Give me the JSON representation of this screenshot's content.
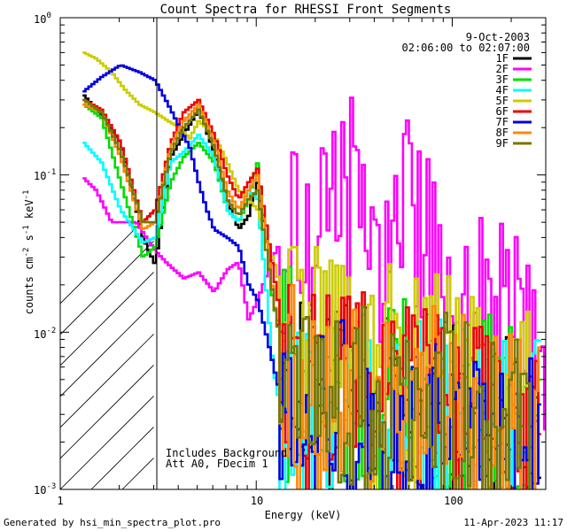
{
  "chart_data": {
    "type": "line",
    "title": "Count Spectra for RHESSI Front Segments",
    "xlabel": "Energy (keV)",
    "ylabel": "counts cm-2 s-1 keV-1",
    "ylabel_parts": {
      "base": "counts cm",
      "e1": "-2",
      "s": " s",
      "e2": "-1",
      "k": " keV",
      "e3": "-1"
    },
    "x_scale": "log",
    "y_scale": "log",
    "xlim": [
      1,
      300
    ],
    "ylim": [
      0.001,
      1.0
    ],
    "x_ticks": [
      {
        "value": 1,
        "label": "1"
      },
      {
        "value": 10,
        "label": "10"
      },
      {
        "value": 100,
        "label": "100"
      }
    ],
    "y_ticks": [
      {
        "value": 1.0,
        "base": "10",
        "exp": "0"
      },
      {
        "value": 0.1,
        "base": "10",
        "exp": "-1"
      },
      {
        "value": 0.01,
        "base": "10",
        "exp": "-2"
      },
      {
        "value": 0.001,
        "base": "10",
        "exp": "-3"
      }
    ],
    "date": "9-Oct-2003",
    "time_range": "02:06:00 to 02:07:00",
    "hatched_region_max_keV": 3,
    "annotations": [
      "Includes Background",
      "Att A0, FDecim 1"
    ],
    "series": [
      {
        "name": "1F",
        "color": "#000000",
        "points": [
          [
            1.3,
            0.32
          ],
          [
            1.6,
            0.24
          ],
          [
            2.0,
            0.16
          ],
          [
            2.6,
            0.04
          ],
          [
            3.0,
            0.027
          ],
          [
            3.6,
            0.13
          ],
          [
            4.2,
            0.18
          ],
          [
            5.0,
            0.26
          ],
          [
            6.0,
            0.14
          ],
          [
            7.0,
            0.07
          ],
          [
            8.0,
            0.045
          ],
          [
            9.0,
            0.055
          ],
          [
            10.0,
            0.09
          ],
          [
            11.0,
            0.04
          ],
          [
            12.5,
            0.012
          ],
          [
            14,
            0.007
          ],
          [
            17,
            0.004
          ],
          [
            20,
            0.005
          ],
          [
            25,
            0.004
          ],
          [
            35,
            0.004
          ],
          [
            50,
            0.0038
          ],
          [
            80,
            0.0035
          ],
          [
            120,
            0.003
          ],
          [
            200,
            0.0026
          ],
          [
            280,
            0.0022
          ]
        ]
      },
      {
        "name": "2F",
        "color": "#ff00ff",
        "points": [
          [
            1.3,
            0.095
          ],
          [
            1.5,
            0.08
          ],
          [
            1.8,
            0.05
          ],
          [
            2.4,
            0.05
          ],
          [
            3.0,
            0.033
          ],
          [
            3.5,
            0.027
          ],
          [
            4.2,
            0.022
          ],
          [
            5.0,
            0.024
          ],
          [
            6.0,
            0.018
          ],
          [
            7.0,
            0.025
          ],
          [
            8.0,
            0.028
          ],
          [
            9.0,
            0.012
          ],
          [
            10.0,
            0.016
          ],
          [
            12.0,
            0.03
          ],
          [
            14.0,
            0.045
          ],
          [
            17.0,
            0.04
          ],
          [
            20.0,
            0.06
          ],
          [
            24.0,
            0.09
          ],
          [
            28.0,
            0.095
          ],
          [
            32.0,
            0.08
          ],
          [
            37.0,
            0.06
          ],
          [
            42.0,
            0.055
          ],
          [
            47.0,
            0.045
          ],
          [
            52.0,
            0.06
          ],
          [
            57.0,
            0.12
          ],
          [
            62.0,
            0.05
          ],
          [
            70.0,
            0.035
          ],
          [
            85.0,
            0.03
          ],
          [
            110.0,
            0.022
          ],
          [
            140.0,
            0.016
          ],
          [
            180.0,
            0.013
          ],
          [
            220.0,
            0.01
          ],
          [
            260.0,
            0.008
          ],
          [
            300.0,
            0.0065
          ]
        ]
      },
      {
        "name": "3F",
        "color": "#00dd00",
        "points": [
          [
            1.3,
            0.28
          ],
          [
            1.6,
            0.23
          ],
          [
            2.0,
            0.09
          ],
          [
            2.6,
            0.03
          ],
          [
            3.0,
            0.035
          ],
          [
            3.6,
            0.09
          ],
          [
            4.2,
            0.13
          ],
          [
            5.0,
            0.16
          ],
          [
            6.0,
            0.12
          ],
          [
            7.0,
            0.06
          ],
          [
            8.0,
            0.05
          ],
          [
            9.0,
            0.07
          ],
          [
            10.0,
            0.12
          ],
          [
            11.0,
            0.04
          ],
          [
            12.0,
            0.015
          ],
          [
            14,
            0.008
          ],
          [
            17,
            0.004
          ],
          [
            20,
            0.004
          ],
          [
            30,
            0.004
          ],
          [
            45,
            0.006
          ],
          [
            60,
            0.004
          ],
          [
            90,
            0.004
          ],
          [
            130,
            0.0035
          ],
          [
            200,
            0.003
          ],
          [
            280,
            0.0025
          ]
        ]
      },
      {
        "name": "4F",
        "color": "#00ffff",
        "points": [
          [
            1.3,
            0.16
          ],
          [
            1.6,
            0.12
          ],
          [
            2.0,
            0.06
          ],
          [
            2.6,
            0.037
          ],
          [
            3.0,
            0.04
          ],
          [
            3.6,
            0.12
          ],
          [
            4.2,
            0.14
          ],
          [
            5.0,
            0.18
          ],
          [
            6.0,
            0.13
          ],
          [
            7.0,
            0.06
          ],
          [
            8.0,
            0.05
          ],
          [
            9.0,
            0.08
          ],
          [
            10.0,
            0.07
          ],
          [
            11.0,
            0.02
          ],
          [
            12.0,
            0.006
          ],
          [
            14,
            0.002
          ],
          [
            17,
            0.003
          ],
          [
            22,
            0.003
          ],
          [
            30,
            0.003
          ],
          [
            45,
            0.0032
          ],
          [
            60,
            0.003
          ],
          [
            90,
            0.0032
          ],
          [
            130,
            0.003
          ],
          [
            200,
            0.0027
          ],
          [
            280,
            0.0023
          ]
        ]
      },
      {
        "name": "5F",
        "color": "#cccc00",
        "points": [
          [
            1.3,
            0.6
          ],
          [
            1.5,
            0.55
          ],
          [
            1.8,
            0.45
          ],
          [
            2.1,
            0.35
          ],
          [
            2.5,
            0.28
          ],
          [
            3.0,
            0.25
          ],
          [
            3.5,
            0.22
          ],
          [
            4.0,
            0.2
          ],
          [
            4.5,
            0.17
          ],
          [
            5.0,
            0.22
          ],
          [
            6.0,
            0.18
          ],
          [
            7.0,
            0.12
          ],
          [
            8.0,
            0.08
          ],
          [
            9.0,
            0.07
          ],
          [
            10.0,
            0.06
          ],
          [
            11.0,
            0.04
          ],
          [
            12.5,
            0.025
          ],
          [
            14,
            0.012
          ],
          [
            17,
            0.008
          ],
          [
            20,
            0.009
          ],
          [
            25,
            0.0085
          ],
          [
            30,
            0.008
          ],
          [
            40,
            0.008
          ],
          [
            60,
            0.007
          ],
          [
            100,
            0.006
          ],
          [
            150,
            0.005
          ],
          [
            250,
            0.0035
          ]
        ]
      },
      {
        "name": "6F",
        "color": "#ee0000",
        "points": [
          [
            1.3,
            0.3
          ],
          [
            1.6,
            0.26
          ],
          [
            2.0,
            0.16
          ],
          [
            2.6,
            0.05
          ],
          [
            3.0,
            0.06
          ],
          [
            3.6,
            0.16
          ],
          [
            4.2,
            0.25
          ],
          [
            5.0,
            0.3
          ],
          [
            6.0,
            0.18
          ],
          [
            7.0,
            0.1
          ],
          [
            8.0,
            0.07
          ],
          [
            9.0,
            0.09
          ],
          [
            10.0,
            0.11
          ],
          [
            11.0,
            0.05
          ],
          [
            12.5,
            0.018
          ],
          [
            14,
            0.008
          ],
          [
            17,
            0.005
          ],
          [
            22,
            0.005
          ],
          [
            30,
            0.0045
          ],
          [
            45,
            0.0045
          ],
          [
            60,
            0.004
          ],
          [
            90,
            0.004
          ],
          [
            130,
            0.0035
          ],
          [
            200,
            0.003
          ],
          [
            280,
            0.0025
          ]
        ]
      },
      {
        "name": "7F",
        "color": "#0000dd",
        "points": [
          [
            1.3,
            0.34
          ],
          [
            1.6,
            0.42
          ],
          [
            2.0,
            0.5
          ],
          [
            2.5,
            0.45
          ],
          [
            3.0,
            0.4
          ],
          [
            3.5,
            0.28
          ],
          [
            4.0,
            0.2
          ],
          [
            4.5,
            0.15
          ],
          [
            5.0,
            0.09
          ],
          [
            5.5,
            0.06
          ],
          [
            6.0,
            0.045
          ],
          [
            7.0,
            0.04
          ],
          [
            8.0,
            0.035
          ],
          [
            9.0,
            0.02
          ],
          [
            10.0,
            0.016
          ],
          [
            11.0,
            0.01
          ],
          [
            12.5,
            0.005
          ],
          [
            14,
            0.003
          ],
          [
            17,
            0.002
          ],
          [
            22,
            0.003
          ],
          [
            30,
            0.003
          ],
          [
            45,
            0.003
          ],
          [
            60,
            0.003
          ],
          [
            90,
            0.003
          ],
          [
            130,
            0.003
          ],
          [
            200,
            0.0025
          ],
          [
            280,
            0.002
          ]
        ]
      },
      {
        "name": "8F",
        "color": "#ff8800",
        "points": [
          [
            1.3,
            0.28
          ],
          [
            1.6,
            0.25
          ],
          [
            2.0,
            0.13
          ],
          [
            2.6,
            0.045
          ],
          [
            3.0,
            0.05
          ],
          [
            3.6,
            0.15
          ],
          [
            4.2,
            0.22
          ],
          [
            5.0,
            0.28
          ],
          [
            6.0,
            0.16
          ],
          [
            7.0,
            0.08
          ],
          [
            8.0,
            0.06
          ],
          [
            9.0,
            0.08
          ],
          [
            10.0,
            0.1
          ],
          [
            11.0,
            0.04
          ],
          [
            12.5,
            0.012
          ],
          [
            14,
            0.006
          ],
          [
            17,
            0.005
          ],
          [
            22,
            0.005
          ],
          [
            30,
            0.0045
          ],
          [
            45,
            0.004
          ],
          [
            60,
            0.004
          ],
          [
            90,
            0.0038
          ],
          [
            130,
            0.0033
          ],
          [
            200,
            0.0028
          ],
          [
            280,
            0.0024
          ]
        ]
      },
      {
        "name": "9F",
        "color": "#777700",
        "points": [
          [
            1.3,
            0.3
          ],
          [
            1.6,
            0.25
          ],
          [
            2.0,
            0.14
          ],
          [
            2.6,
            0.05
          ],
          [
            3.0,
            0.05
          ],
          [
            3.6,
            0.14
          ],
          [
            4.2,
            0.2
          ],
          [
            5.0,
            0.26
          ],
          [
            6.0,
            0.15
          ],
          [
            7.0,
            0.07
          ],
          [
            8.0,
            0.055
          ],
          [
            9.0,
            0.07
          ],
          [
            10.0,
            0.08
          ],
          [
            11.0,
            0.035
          ],
          [
            12.5,
            0.012
          ],
          [
            14,
            0.006
          ],
          [
            17,
            0.004
          ],
          [
            22,
            0.004
          ],
          [
            30,
            0.004
          ],
          [
            45,
            0.0035
          ],
          [
            60,
            0.0035
          ],
          [
            90,
            0.0035
          ],
          [
            130,
            0.003
          ],
          [
            200,
            0.0025
          ],
          [
            280,
            0.0022
          ]
        ]
      }
    ]
  },
  "footer": {
    "generator": "Generated by hsi_min_spectra_plot.pro",
    "timestamp": "11-Apr-2023 11:17"
  }
}
